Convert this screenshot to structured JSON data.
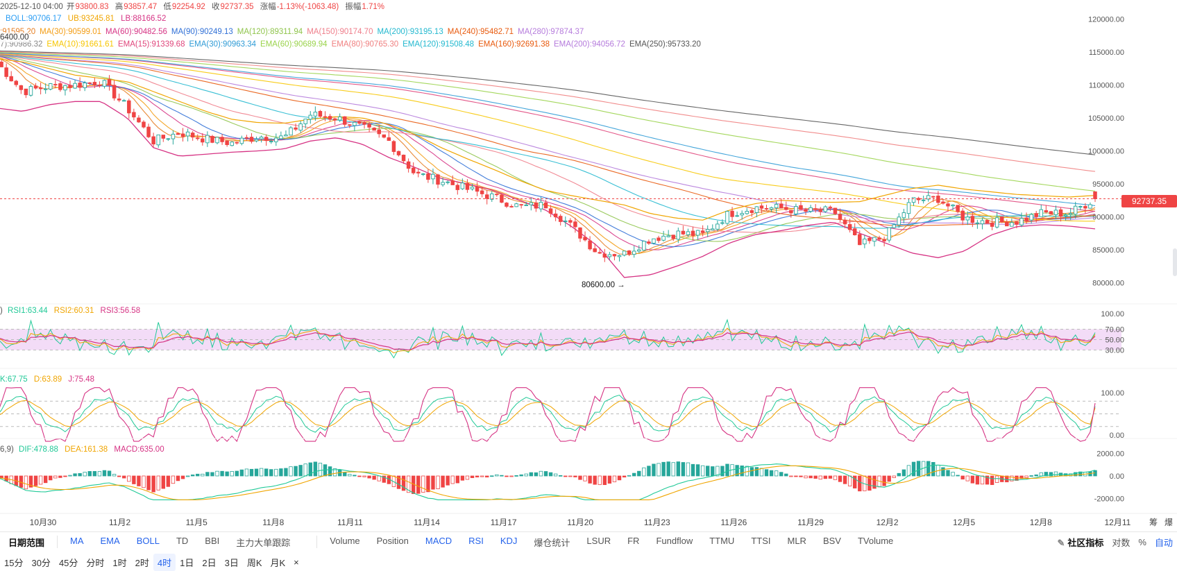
{
  "ohlc_bar": {
    "time": "2025-12-10 04:00",
    "open_label": "开",
    "open": "93800.83",
    "high_label": "高",
    "high": "93857.47",
    "low_label": "低",
    "low": "92254.92",
    "close_label": "收",
    "close": "92737.35",
    "change_label": "涨幅",
    "change": "-1.13%(-1063.48)",
    "amp_label": "振幅",
    "amp": "1.71%"
  },
  "boll_legend": {
    "boll": "BOLL:90706.17",
    "ub": "UB:93245.81",
    "lb": "LB:88166.52"
  },
  "ma_legend": [
    {
      "text": ":91595.20",
      "color": "#e67e22"
    },
    {
      "text": "MA(30):90599.01",
      "color": "#f39c12"
    },
    {
      "text": "MA(60):90482.56",
      "color": "#d63384"
    },
    {
      "text": "MA(90):90249.13",
      "color": "#2f6fd6"
    },
    {
      "text": "MA(120):89311.94",
      "color": "#8fc44b"
    },
    {
      "text": "MA(150):90174.70",
      "color": "#ef7d8a"
    },
    {
      "text": "MA(200):93195.13",
      "color": "#22b8cf"
    },
    {
      "text": "MA(240):95482.71",
      "color": "#e8590c"
    },
    {
      "text": "MA(280):97874.37",
      "color": "#b57bdc"
    }
  ],
  "ema_legend": [
    {
      "text": "7):90986.32",
      "color": "#888888"
    },
    {
      "text": "EMA(10):91661.61",
      "color": "#f7c600"
    },
    {
      "text": "EMA(15):91339.68",
      "color": "#e0457b"
    },
    {
      "text": "EMA(30):90963.34",
      "color": "#2f9bd6"
    },
    {
      "text": "EMA(60):90689.94",
      "color": "#9ad34b"
    },
    {
      "text": "EMA(80):90765.30",
      "color": "#f08080"
    },
    {
      "text": "EMA(120):91508.48",
      "color": "#22b8cf"
    },
    {
      "text": "EMA(160):92691.38",
      "color": "#e8590c"
    },
    {
      "text": "EMA(200):94056.72",
      "color": "#b57bdc"
    },
    {
      "text": "EMA(250):95733.20",
      "color": "#555555"
    }
  ],
  "price_flag": "6400.00",
  "low_annotation": "80600.00 →",
  "last_price": "92737.35",
  "rsi_legend": {
    "prefix": ")",
    "rsi1": "RSI1:63.44",
    "rsi2": "RSI2:60.31",
    "rsi3": "RSI3:56.58"
  },
  "kdj_legend": {
    "k": "K:67.75",
    "d": "D:63.89",
    "j": "J:75.48"
  },
  "macd_legend": {
    "prefix": "6,9)",
    "dif": "DIF:478.88",
    "dea": "DEA:161.38",
    "macd": "MACD:635.00"
  },
  "price_axis": [
    "120000.00",
    "115000.00",
    "110000.00",
    "105000.00",
    "100000.00",
    "95000.00",
    "90000.00",
    "85000.00",
    "80000.00"
  ],
  "rsi_axis": [
    "100.00",
    "70.00",
    "50.00",
    "30.00"
  ],
  "kdj_axis": [
    "100.00",
    "0.00"
  ],
  "macd_axis": [
    "2000.00",
    "0.00",
    "-2000.00"
  ],
  "date_axis": [
    "10月30",
    "11月2",
    "11月5",
    "11月8",
    "11月11",
    "11月14",
    "11月17",
    "11月20",
    "11月23",
    "11月26",
    "11月29",
    "12月2",
    "12月5",
    "12月8",
    "12月11"
  ],
  "date_axis_extra": [
    "筹",
    "爆"
  ],
  "toolbar": {
    "date_range": "日期范围",
    "main_indicators": [
      "MA",
      "EMA",
      "BOLL",
      "TD",
      "BBI",
      "主力大单跟踪"
    ],
    "sub_indicators": [
      "Volume",
      "Position",
      "MACD",
      "RSI",
      "KDJ",
      "爆仓统计",
      "LSUR",
      "FR",
      "Fundflow",
      "TTMU",
      "TTSI",
      "MLR",
      "BSV",
      "TVolume"
    ],
    "community": "社区指标",
    "log_scale": "对数",
    "percent": "%",
    "auto": "自动"
  },
  "periods": [
    "15分",
    "30分",
    "45分",
    "分时",
    "1时",
    "2时",
    "4时",
    "1日",
    "2日",
    "3日",
    "周K",
    "月K",
    "×"
  ],
  "active_period": "4时",
  "colors": {
    "up": "#26a69a",
    "down": "#ef4444",
    "accent": "#2563eb",
    "rsi_band": "#f3dcf7"
  },
  "chart_data": {
    "type": "candlestick",
    "interval": "4h",
    "x_range": [
      "10月29",
      "12月10 04:00"
    ],
    "ylim": [
      79000,
      121000
    ],
    "close_path": [
      {
        "date": "10月29",
        "close": 113500
      },
      {
        "date": "10月30",
        "close": 109000
      },
      {
        "date": "10月31",
        "close": 109800
      },
      {
        "date": "11月1",
        "close": 110000
      },
      {
        "date": "11月2",
        "close": 110600
      },
      {
        "date": "11月3",
        "close": 106500
      },
      {
        "date": "11月4",
        "close": 101500
      },
      {
        "date": "11月5",
        "close": 102800
      },
      {
        "date": "11月6",
        "close": 101800
      },
      {
        "date": "11月7",
        "close": 101200
      },
      {
        "date": "11月8",
        "close": 102200
      },
      {
        "date": "11月9",
        "close": 102000
      },
      {
        "date": "11月10",
        "close": 105500
      },
      {
        "date": "11月11",
        "close": 105000
      },
      {
        "date": "11月12",
        "close": 103500
      },
      {
        "date": "11月13",
        "close": 101500
      },
      {
        "date": "11月14",
        "close": 96500
      },
      {
        "date": "11月15",
        "close": 95500
      },
      {
        "date": "11月16",
        "close": 94200
      },
      {
        "date": "11月17",
        "close": 93000
      },
      {
        "date": "11月18",
        "close": 91500
      },
      {
        "date": "11月19",
        "close": 91800
      },
      {
        "date": "11月20",
        "close": 88500
      },
      {
        "date": "11月21",
        "close": 84500
      },
      {
        "date": "11月22",
        "close": 84400
      },
      {
        "date": "11月23",
        "close": 86700
      },
      {
        "date": "11月24",
        "close": 87500
      },
      {
        "date": "11月25",
        "close": 87300
      },
      {
        "date": "11月26",
        "close": 90500
      },
      {
        "date": "11月27",
        "close": 91400
      },
      {
        "date": "11月28",
        "close": 91300
      },
      {
        "date": "11月29",
        "close": 90800
      },
      {
        "date": "11月30",
        "close": 90900
      },
      {
        "date": "12月1",
        "close": 85700
      },
      {
        "date": "12月2",
        "close": 87000
      },
      {
        "date": "12月3",
        "close": 92500
      },
      {
        "date": "12月4",
        "close": 92800
      },
      {
        "date": "12月5",
        "close": 89800
      },
      {
        "date": "12月6",
        "close": 89200
      },
      {
        "date": "12月7",
        "close": 89300
      },
      {
        "date": "12月8",
        "close": 90600
      },
      {
        "date": "12月9",
        "close": 90500
      },
      {
        "date": "12月10",
        "close": 92737.35
      }
    ],
    "boll_upper_path": [
      114000,
      113500,
      112500,
      111500,
      111000,
      110500,
      109000,
      107500,
      106000,
      104800,
      104300,
      104200,
      104800,
      105200,
      105000,
      104000,
      102500,
      100500,
      98800,
      97200,
      95500,
      94000,
      93200,
      92500,
      91800,
      90500,
      89800,
      89500,
      91000,
      92000,
      92500,
      92300,
      92200,
      92300,
      93300,
      94300,
      94800,
      94200,
      93800,
      93400,
      93200,
      93000,
      93245.81
    ],
    "boll_lower_path": [
      106500,
      106000,
      107000,
      107500,
      107500,
      105000,
      100500,
      99200,
      99500,
      99800,
      100000,
      100300,
      101500,
      102000,
      101000,
      99000,
      97500,
      95800,
      95000,
      94000,
      92500,
      91000,
      88500,
      85500,
      80800,
      81200,
      82500,
      84000,
      86000,
      87300,
      87900,
      88700,
      89200,
      87500,
      86000,
      84500,
      83800,
      84800,
      87200,
      88500,
      88800,
      88600,
      88166.52
    ],
    "annotations": [
      {
        "label": "80600.00",
        "date": "11月22",
        "value": 80600
      }
    ],
    "last_price": 92737.35,
    "indicators": {
      "BOLL": 90706.17,
      "UB": 93245.81,
      "LB": 88166.52,
      "RSI": {
        "RSI1": 63.44,
        "RSI2": 60.31,
        "RSI3": 56.58,
        "levels": [
          30,
          50,
          70
        ]
      },
      "KDJ": {
        "K": 67.75,
        "D": 63.89,
        "J": 75.48
      },
      "MACD": {
        "DIF": 478.88,
        "DEA": 161.38,
        "MACD": 635.0
      }
    }
  }
}
